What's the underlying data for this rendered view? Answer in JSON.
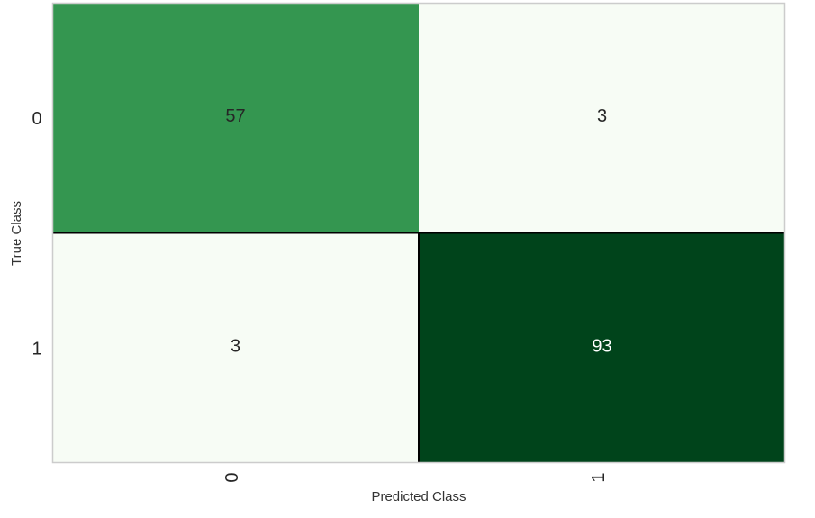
{
  "chart_data": {
    "type": "heatmap",
    "title": "",
    "xlabel": "Predicted Class",
    "ylabel": "True Class",
    "x_categories": [
      "0",
      "1"
    ],
    "y_categories": [
      "0",
      "1"
    ],
    "matrix": [
      [
        57,
        3
      ],
      [
        3,
        93
      ]
    ],
    "colormap": "Greens",
    "colors": {
      "low": "#f7fcf5",
      "mid": "#41ab5d",
      "high": "#00441b",
      "grid_line": "#000000",
      "frame": "#cccccc",
      "text_dark": "#262626",
      "text_light": "#ffffff"
    },
    "grid": false,
    "legend": "none"
  }
}
